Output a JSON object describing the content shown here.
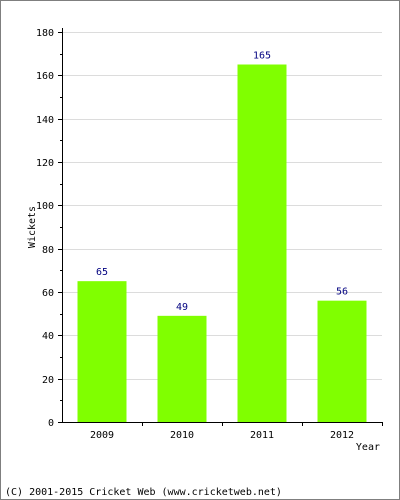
{
  "chart_data": {
    "type": "bar",
    "categories": [
      "2009",
      "2010",
      "2011",
      "2012"
    ],
    "values": [
      65,
      49,
      165,
      56
    ],
    "title": "",
    "xlabel": "Year",
    "ylabel": "Wickets",
    "ylim": [
      0,
      180
    ],
    "yticks": [
      0,
      20,
      40,
      60,
      80,
      100,
      120,
      140,
      160,
      180
    ],
    "grid": true,
    "legend": "none",
    "bar_color": "#80ff00",
    "label_color": "#000080"
  },
  "footer": {
    "text": "(C) 2001-2015 Cricket Web (www.cricketweb.net)"
  }
}
